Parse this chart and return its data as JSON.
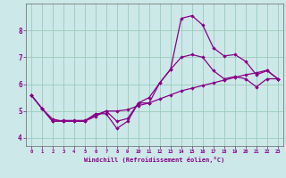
{
  "xlabel": "Windchill (Refroidissement éolien,°C)",
  "bg_color": "#cce8e8",
  "line_color": "#880088",
  "marker_color": "#880088",
  "xlim": [
    -0.5,
    23.5
  ],
  "ylim": [
    3.7,
    9.0
  ],
  "xticks": [
    0,
    1,
    2,
    3,
    4,
    5,
    6,
    7,
    8,
    9,
    10,
    11,
    12,
    13,
    14,
    15,
    16,
    17,
    18,
    19,
    20,
    21,
    22,
    23
  ],
  "yticks": [
    4,
    5,
    6,
    7,
    8
  ],
  "grid_color": "#99ccbb",
  "series1_x": [
    0,
    1,
    2,
    3,
    4,
    5,
    6,
    7,
    8,
    9,
    10,
    11,
    12,
    13,
    14,
    15,
    16,
    17,
    18,
    19,
    20,
    21,
    22,
    23
  ],
  "series1_y": [
    5.6,
    5.1,
    4.7,
    4.62,
    4.62,
    4.62,
    4.9,
    4.9,
    4.35,
    4.62,
    5.3,
    5.3,
    6.05,
    6.55,
    8.45,
    8.55,
    8.2,
    7.35,
    7.05,
    7.1,
    6.85,
    6.35,
    6.5,
    6.2
  ],
  "series2_x": [
    0,
    1,
    2,
    3,
    4,
    5,
    6,
    7,
    8,
    9,
    10,
    11,
    12,
    13,
    14,
    15,
    16,
    17,
    18,
    19,
    20,
    21,
    22,
    23
  ],
  "series2_y": [
    5.6,
    5.1,
    4.62,
    4.62,
    4.62,
    4.62,
    4.8,
    5.0,
    5.0,
    5.05,
    5.2,
    5.3,
    5.45,
    5.6,
    5.75,
    5.85,
    5.95,
    6.05,
    6.15,
    6.25,
    6.35,
    6.42,
    6.52,
    6.2
  ],
  "series3_x": [
    0,
    1,
    2,
    3,
    4,
    5,
    6,
    7,
    8,
    9,
    10,
    11,
    12,
    13,
    14,
    15,
    16,
    17,
    18,
    19,
    20,
    21,
    22,
    23
  ],
  "series3_y": [
    5.6,
    5.1,
    4.62,
    4.65,
    4.65,
    4.65,
    4.85,
    5.0,
    4.62,
    4.72,
    5.3,
    5.5,
    6.05,
    6.55,
    7.0,
    7.1,
    7.0,
    6.5,
    6.2,
    6.28,
    6.2,
    5.9,
    6.2,
    6.2
  ]
}
